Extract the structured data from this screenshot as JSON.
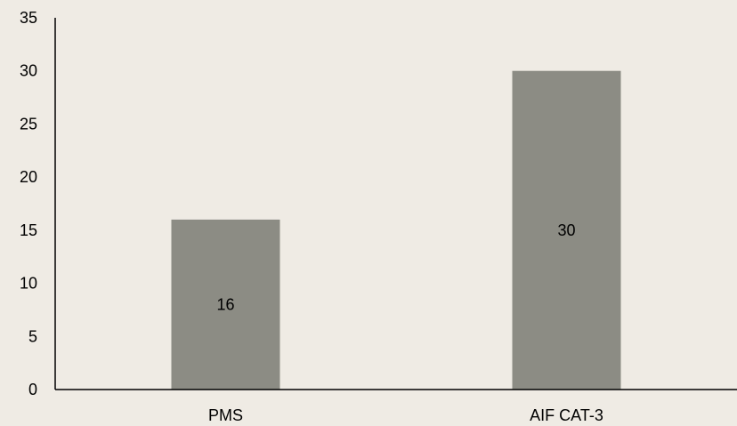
{
  "chart_data": {
    "type": "bar",
    "title": "",
    "xlabel": "",
    "ylabel": "",
    "categories": [
      "PMS",
      "AIF CAT-3"
    ],
    "values": [
      16,
      30
    ],
    "data_labels": [
      "16",
      "30"
    ],
    "ylim": [
      0,
      35
    ],
    "yticks": [
      0,
      5,
      10,
      15,
      20,
      25,
      30,
      35
    ],
    "ytick_labels": [
      "0",
      "5",
      "10",
      "15",
      "20",
      "25",
      "30",
      "35"
    ],
    "grid": false,
    "legend": "none",
    "colors": {
      "bar": "#8c8c84",
      "background": "#efebe4",
      "axis": "#000000"
    }
  }
}
